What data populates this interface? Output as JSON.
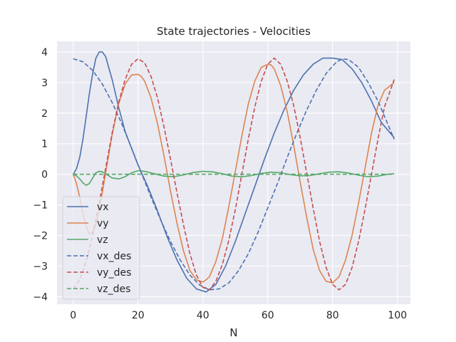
{
  "chart_data": {
    "type": "line",
    "title": "State trajectories - Velocities",
    "xlabel": "N",
    "ylabel": "",
    "xlim": [
      -5,
      104
    ],
    "ylim": [
      -4.25,
      4.35
    ],
    "xticks": [
      0,
      20,
      40,
      60,
      80,
      100
    ],
    "yticks": [
      -4,
      -3,
      -2,
      -1,
      0,
      1,
      2,
      3,
      4
    ],
    "grid": true,
    "legend_position": "lower-left",
    "series": [
      {
        "name": "vx",
        "color": "#4c72b0",
        "style": "solid",
        "x": [
          0,
          1,
          2,
          3,
          4,
          5,
          6,
          7,
          8,
          9,
          10,
          12,
          14,
          16,
          18,
          20,
          23,
          26,
          29,
          32,
          35,
          38,
          41,
          44,
          47,
          50,
          53,
          56,
          59,
          62,
          65,
          68,
          71,
          74,
          77,
          80,
          83,
          86,
          89,
          92,
          95,
          99
        ],
        "y": [
          0,
          0.18,
          0.55,
          1.15,
          1.9,
          2.65,
          3.3,
          3.8,
          4.0,
          4.0,
          3.85,
          3.1,
          2.2,
          1.4,
          0.85,
          0.3,
          -0.4,
          -1.2,
          -2.05,
          -2.8,
          -3.4,
          -3.75,
          -3.85,
          -3.6,
          -3.0,
          -2.2,
          -1.3,
          -0.4,
          0.5,
          1.35,
          2.1,
          2.75,
          3.25,
          3.6,
          3.8,
          3.8,
          3.75,
          3.45,
          3.0,
          2.4,
          1.7,
          1.2
        ]
      },
      {
        "name": "vy",
        "color": "#dd8452",
        "style": "solid",
        "x": [
          0,
          1,
          2,
          3,
          4,
          5,
          6,
          7,
          8,
          10,
          12,
          14,
          16,
          18,
          20,
          21,
          22,
          24,
          26,
          28,
          30,
          32,
          34,
          36,
          38,
          40,
          41,
          42,
          44,
          46,
          48,
          50,
          52,
          54,
          56,
          58,
          60,
          61,
          62,
          64,
          66,
          68,
          70,
          72,
          74,
          76,
          78,
          80,
          82,
          84,
          86,
          88,
          90,
          92,
          94,
          96,
          99
        ],
        "y": [
          0,
          -0.3,
          -0.75,
          -1.3,
          -1.7,
          -1.95,
          -1.9,
          -1.65,
          -1.2,
          0.05,
          1.3,
          2.3,
          2.95,
          3.25,
          3.27,
          3.2,
          3.05,
          2.5,
          1.65,
          0.6,
          -0.55,
          -1.6,
          -2.5,
          -3.15,
          -3.45,
          -3.52,
          -3.45,
          -3.35,
          -2.85,
          -2.1,
          -1.05,
          0.1,
          1.25,
          2.3,
          3.05,
          3.5,
          3.6,
          3.58,
          3.45,
          2.9,
          2.05,
          0.95,
          -0.25,
          -1.4,
          -2.45,
          -3.15,
          -3.5,
          -3.55,
          -3.35,
          -2.8,
          -2.0,
          -0.95,
          0.2,
          1.35,
          2.25,
          2.75,
          3.0
        ]
      },
      {
        "name": "vz",
        "color": "#55a868",
        "style": "solid",
        "x": [
          0,
          1,
          2,
          3,
          4,
          5,
          6,
          7,
          8,
          9,
          10,
          12,
          14,
          16,
          18,
          20,
          22,
          25,
          28,
          31,
          34,
          37,
          40,
          43,
          46,
          49,
          52,
          55,
          58,
          61,
          64,
          67,
          70,
          73,
          76,
          79,
          82,
          85,
          88,
          91,
          94,
          97,
          99
        ],
        "y": [
          0,
          -0.05,
          -0.15,
          -0.28,
          -0.36,
          -0.3,
          -0.12,
          0.05,
          0.1,
          0.08,
          0.02,
          -0.12,
          -0.15,
          -0.08,
          0.05,
          0.12,
          0.1,
          0.02,
          -0.06,
          -0.08,
          -0.02,
          0.06,
          0.1,
          0.08,
          0.02,
          -0.06,
          -0.08,
          -0.04,
          0.03,
          0.07,
          0.05,
          -0.01,
          -0.05,
          -0.04,
          0.02,
          0.07,
          0.08,
          0.04,
          -0.03,
          -0.08,
          -0.06,
          0.0,
          0.02
        ]
      },
      {
        "name": "vx_des",
        "color": "#4c72b0",
        "style": "dashed",
        "x": [
          0,
          3,
          6,
          9,
          12,
          15,
          18,
          21,
          24,
          27,
          30,
          33,
          36,
          39,
          42,
          45,
          48,
          51,
          54,
          57,
          60,
          63,
          66,
          69,
          72,
          75,
          78,
          81,
          83,
          85,
          88,
          91,
          94,
          97,
          99
        ],
        "y": [
          3.78,
          3.68,
          3.4,
          2.95,
          2.35,
          1.65,
          0.85,
          0.05,
          -0.75,
          -1.5,
          -2.2,
          -2.8,
          -3.3,
          -3.62,
          -3.78,
          -3.75,
          -3.55,
          -3.15,
          -2.6,
          -1.9,
          -1.1,
          -0.3,
          0.55,
          1.35,
          2.1,
          2.75,
          3.3,
          3.65,
          3.78,
          3.75,
          3.5,
          3.0,
          2.4,
          1.65,
          1.15
        ]
      },
      {
        "name": "vy_des",
        "color": "#c44e52",
        "style": "dashed",
        "x": [
          0,
          2,
          4,
          6,
          8,
          10,
          12,
          14,
          16,
          18,
          20,
          22,
          24,
          26,
          28,
          30,
          32,
          34,
          36,
          38,
          40,
          42,
          44,
          46,
          48,
          50,
          52,
          54,
          56,
          58,
          60,
          62,
          64,
          66,
          68,
          70,
          72,
          74,
          76,
          78,
          80,
          82,
          84,
          86,
          88,
          90,
          92,
          94,
          96,
          99
        ],
        "y": [
          -3.75,
          -3.45,
          -2.85,
          -2.0,
          -0.95,
          0.2,
          1.35,
          2.35,
          3.1,
          3.6,
          3.78,
          3.65,
          3.2,
          2.5,
          1.55,
          0.5,
          -0.6,
          -1.65,
          -2.6,
          -3.3,
          -3.7,
          -3.78,
          -3.5,
          -2.95,
          -2.15,
          -1.15,
          0.0,
          1.15,
          2.2,
          3.05,
          3.6,
          3.8,
          3.6,
          3.05,
          2.25,
          1.2,
          0.05,
          -1.1,
          -2.2,
          -3.05,
          -3.6,
          -3.78,
          -3.6,
          -3.05,
          -2.2,
          -1.15,
          0.0,
          1.15,
          2.2,
          3.1
        ]
      },
      {
        "name": "vz_des",
        "color": "#55a868",
        "style": "dashed",
        "x": [
          0,
          99
        ],
        "y": [
          0,
          0
        ]
      }
    ]
  }
}
